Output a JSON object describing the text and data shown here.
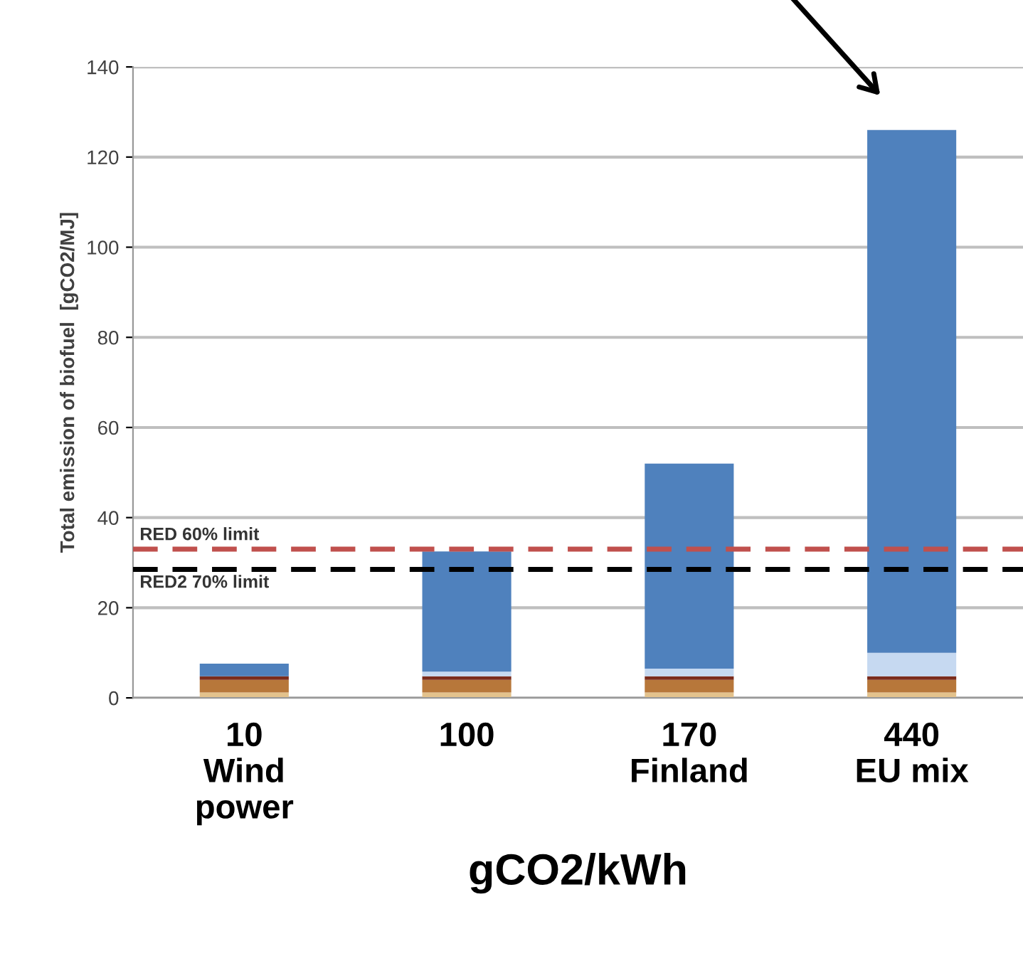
{
  "chart_data": {
    "type": "bar",
    "stacked": true,
    "ylabel": "Total emission of biofuel  [gCO2/MJ]",
    "xlabel": "gCO2/kWh",
    "categories": [
      "10\nWind\npower",
      "100",
      "170\nFinland",
      "440\nEU mix"
    ],
    "series": [
      {
        "color": "#e3c28c",
        "values": [
          1.2,
          1.2,
          1.2,
          1.2
        ]
      },
      {
        "color": "#b7773a",
        "values": [
          2.8,
          2.8,
          2.8,
          2.8
        ]
      },
      {
        "color": "#7b2c1c",
        "values": [
          0.8,
          0.8,
          0.8,
          0.8
        ]
      },
      {
        "color": "#c6d9f1",
        "values": [
          0,
          1,
          1.7,
          5.2
        ]
      },
      {
        "color": "#4f81bd",
        "values": [
          2.8,
          26.7,
          45.5,
          116
        ]
      }
    ],
    "ylim": [
      0,
      140
    ],
    "yticks": [
      0,
      20,
      40,
      60,
      80,
      100,
      120,
      140
    ],
    "grid": "y",
    "legend": false,
    "ref_lines": [
      {
        "axis": "y",
        "value": 33,
        "label": "RED 60% limit",
        "color": "#c0504d",
        "line_style": "dashed"
      },
      {
        "axis": "y",
        "value": 28.5,
        "label": "RED2 70% limit",
        "color": "#000000",
        "line_style": "dashed"
      }
    ]
  }
}
